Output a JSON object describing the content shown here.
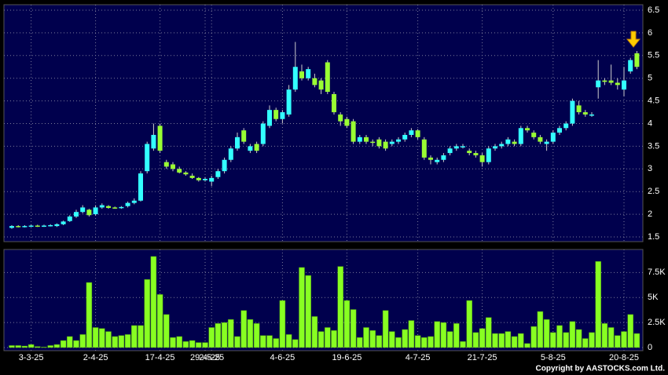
{
  "chart_data": {
    "type": "candlestick",
    "categories": [
      null,
      null,
      null,
      "3-3-25",
      null,
      null,
      null,
      null,
      null,
      null,
      null,
      null,
      null,
      "2-4-25",
      null,
      null,
      null,
      null,
      null,
      null,
      null,
      null,
      null,
      "17-4-25",
      null,
      null,
      null,
      null,
      null,
      null,
      "29-4-25",
      "2-5-25",
      null,
      null,
      null,
      null,
      null,
      null,
      null,
      null,
      null,
      null,
      "4-6-25",
      null,
      null,
      null,
      null,
      null,
      null,
      null,
      null,
      null,
      "19-6-25",
      null,
      null,
      null,
      null,
      null,
      null,
      null,
      null,
      null,
      null,
      "4-7-25",
      null,
      null,
      null,
      null,
      null,
      null,
      null,
      null,
      null,
      "21-7-25",
      null,
      null,
      null,
      null,
      null,
      null,
      null,
      null,
      null,
      null,
      "5-8-25",
      null,
      null,
      null,
      null,
      null,
      null,
      null,
      null,
      null,
      null,
      "20-8-25",
      null,
      null
    ],
    "open": [
      1.7,
      1.74,
      1.73,
      1.74,
      1.75,
      1.74,
      1.75,
      1.74,
      1.78,
      1.85,
      1.95,
      2.05,
      2.1,
      2.0,
      2.15,
      2.18,
      2.15,
      2.14,
      2.18,
      2.25,
      2.3,
      2.95,
      3.45,
      3.95,
      3.15,
      3.1,
      3.0,
      2.92,
      2.85,
      2.8,
      2.75,
      2.72,
      2.82,
      2.95,
      3.2,
      3.45,
      3.85,
      3.4,
      3.55,
      3.55,
      3.95,
      4.3,
      4.1,
      4.2,
      4.75,
      5.15,
      5.0,
      5.0,
      4.95,
      5.35,
      4.65,
      4.2,
      4.1,
      4.05,
      3.6,
      3.7,
      3.6,
      3.65,
      3.6,
      3.55,
      3.6,
      3.65,
      3.75,
      3.85,
      3.65,
      3.25,
      3.15,
      3.2,
      3.35,
      3.45,
      3.5,
      3.4,
      3.35,
      3.3,
      3.15,
      3.45,
      3.5,
      3.55,
      3.6,
      3.55,
      3.9,
      3.8,
      3.7,
      3.55,
      3.6,
      3.8,
      3.9,
      4.0,
      4.4,
      4.25,
      4.2,
      4.8,
      4.95,
      4.95,
      4.9,
      4.75,
      5.15,
      5.55
    ],
    "high": [
      1.76,
      1.76,
      1.76,
      1.77,
      1.77,
      1.77,
      1.78,
      1.8,
      1.86,
      1.98,
      2.1,
      2.2,
      2.12,
      2.2,
      2.24,
      2.2,
      2.17,
      2.18,
      2.28,
      2.35,
      2.95,
      3.6,
      4.0,
      4.0,
      3.2,
      3.15,
      3.05,
      2.95,
      2.9,
      2.82,
      2.82,
      2.85,
      3.0,
      3.25,
      3.5,
      3.8,
      3.9,
      3.55,
      3.6,
      4.05,
      4.4,
      4.35,
      4.3,
      4.85,
      5.8,
      5.3,
      5.25,
      5.1,
      5.0,
      5.4,
      4.7,
      4.25,
      4.15,
      4.1,
      3.75,
      3.75,
      3.65,
      3.7,
      3.65,
      3.65,
      3.7,
      3.8,
      3.9,
      3.88,
      3.7,
      3.3,
      3.25,
      3.35,
      3.5,
      3.55,
      3.55,
      3.45,
      3.4,
      3.35,
      3.5,
      3.55,
      3.6,
      3.7,
      3.65,
      3.95,
      3.95,
      3.85,
      3.75,
      3.65,
      3.85,
      3.95,
      4.05,
      4.55,
      4.5,
      4.3,
      4.25,
      5.4,
      5.0,
      5.3,
      5.0,
      5.25,
      5.45,
      5.6
    ],
    "low": [
      1.68,
      1.71,
      1.71,
      1.72,
      1.72,
      1.72,
      1.73,
      1.72,
      1.76,
      1.83,
      1.92,
      2.02,
      1.95,
      1.97,
      2.12,
      2.12,
      2.12,
      2.12,
      2.15,
      2.22,
      2.28,
      2.9,
      3.4,
      3.35,
      3.0,
      2.95,
      2.9,
      2.85,
      2.78,
      2.72,
      2.72,
      2.62,
      2.78,
      2.9,
      3.15,
      3.4,
      3.55,
      3.35,
      3.35,
      3.5,
      3.9,
      4.05,
      4.0,
      4.15,
      4.7,
      4.95,
      4.95,
      4.8,
      4.65,
      4.65,
      4.2,
      3.95,
      3.9,
      3.55,
      3.55,
      3.55,
      3.5,
      3.45,
      3.4,
      3.5,
      3.55,
      3.6,
      3.7,
      3.65,
      3.2,
      3.1,
      3.1,
      3.15,
      3.3,
      3.4,
      3.45,
      3.3,
      3.25,
      3.05,
      3.1,
      3.4,
      3.45,
      3.5,
      3.5,
      3.5,
      3.8,
      3.65,
      3.55,
      3.4,
      3.55,
      3.75,
      3.85,
      3.95,
      4.2,
      4.15,
      4.15,
      4.55,
      4.85,
      4.85,
      4.75,
      4.6,
      5.1,
      5.2
    ],
    "close": [
      1.74,
      1.73,
      1.74,
      1.75,
      1.74,
      1.75,
      1.76,
      1.78,
      1.84,
      1.95,
      2.05,
      2.15,
      1.98,
      2.15,
      2.2,
      2.14,
      2.14,
      2.16,
      2.25,
      2.3,
      2.9,
      3.55,
      3.75,
      3.4,
      3.05,
      3.0,
      2.92,
      2.88,
      2.8,
      2.75,
      2.78,
      2.8,
      2.95,
      3.2,
      3.45,
      3.7,
      3.6,
      3.5,
      3.4,
      4.0,
      4.3,
      4.1,
      4.25,
      4.75,
      5.25,
      5.0,
      5.2,
      4.85,
      4.75,
      4.7,
      4.25,
      4.05,
      3.95,
      3.6,
      3.7,
      3.6,
      3.58,
      3.5,
      3.45,
      3.6,
      3.65,
      3.75,
      3.85,
      3.7,
      3.25,
      3.2,
      3.2,
      3.3,
      3.45,
      3.5,
      3.5,
      3.35,
      3.3,
      3.15,
      3.45,
      3.5,
      3.55,
      3.65,
      3.55,
      3.9,
      3.85,
      3.7,
      3.6,
      3.6,
      3.8,
      3.9,
      4.0,
      4.5,
      4.25,
      4.2,
      4.2,
      4.95,
      4.92,
      4.9,
      4.85,
      4.95,
      5.4,
      5.25
    ],
    "up_color": "#33ffff",
    "down_color": "#99ff33",
    "ylim": [
      1.5,
      6.5
    ],
    "yticks": [
      1.5,
      2,
      2.5,
      3,
      3.5,
      4,
      4.5,
      5,
      5.5,
      6,
      6.5
    ],
    "grid": true,
    "volume": {
      "type": "bar",
      "color": "#88ff22",
      "values": [
        200,
        200,
        150,
        300,
        100,
        50,
        200,
        300,
        700,
        1100,
        700,
        1300,
        6500,
        2000,
        1900,
        1600,
        1100,
        1200,
        1300,
        2200,
        2200,
        6800,
        9100,
        5300,
        3300,
        1000,
        1100,
        600,
        700,
        500,
        500,
        2000,
        2400,
        2500,
        2800,
        1100,
        3700,
        2800,
        2400,
        1200,
        1200,
        900,
        4700,
        1300,
        800,
        8000,
        7200,
        3100,
        1600,
        2000,
        1700,
        8100,
        4700,
        3800,
        1000,
        2000,
        1700,
        1200,
        3700,
        1600,
        1000,
        1800,
        2700,
        1200,
        1000,
        1100,
        2600,
        2500,
        1600,
        2400,
        600,
        4700,
        1500,
        1900,
        3000,
        1400,
        1400,
        1600,
        1100,
        1400,
        400,
        2100,
        3600,
        2800,
        1500,
        2200,
        1500,
        2600,
        1800,
        900,
        1500,
        8600,
        2400,
        2000,
        1200,
        1600,
        3300,
        1400
      ],
      "ylim": [
        0,
        9800
      ],
      "yticks": [
        0,
        {
          "value": 2500,
          "label": "2.5K"
        },
        {
          "value": 5000,
          "label": "5K"
        },
        {
          "value": 7500,
          "label": "7.5K"
        }
      ]
    }
  },
  "copyright": "Copyright by AASTOCKS.com Ltd."
}
